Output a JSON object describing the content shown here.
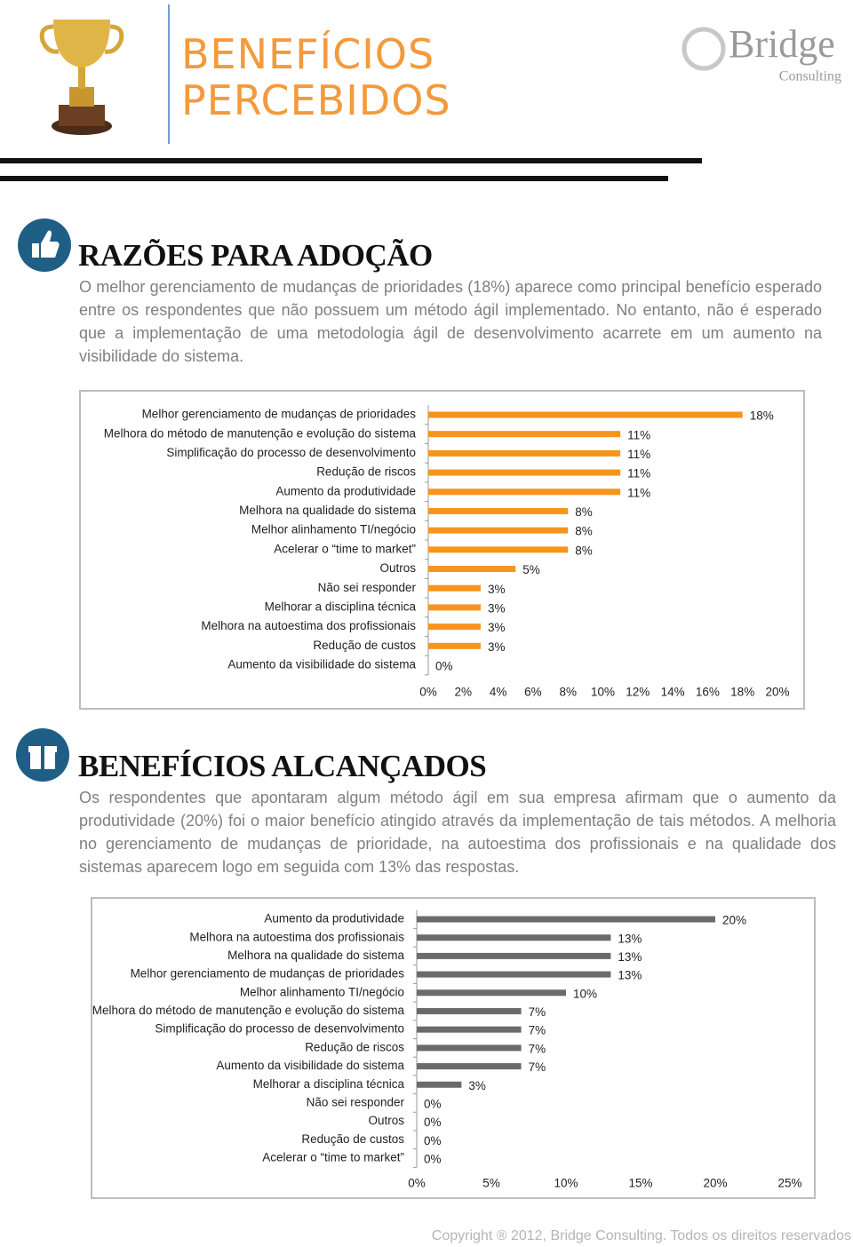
{
  "header": {
    "title_line1": "BENEFÍCIOS",
    "title_line2": "PERCEBIDOS",
    "logo": "Bridge",
    "logo_sub": "Consulting"
  },
  "sections": [
    {
      "title": "RAZÕES PARA ADOÇÃO",
      "text": "O melhor gerenciamento de mudanças de prioridades (18%) aparece como principal benefício esperado entre os respondentes que não possuem um método ágil implementado. No entanto, não é esperado que a implementação de uma metodologia ágil de desenvolvimento acarrete em um aumento na visibilidade do sistema."
    },
    {
      "title": "BENEFÍCIOS ALCANÇADOS",
      "text": "Os respondentes que apontaram algum método ágil em sua empresa afirmam que o aumento da produtividade (20%) foi o maior benefício atingido através da implementação de tais métodos. A melhoria no gerenciamento de mudanças de prioridade, na autoestima dos profissionais e na qualidade dos sistemas aparecem logo em seguida com 13% das respostas."
    }
  ],
  "chart_data": [
    {
      "type": "bar",
      "orientation": "horizontal",
      "color": "#f7941d",
      "categories": [
        "Melhor gerenciamento de mudanças de prioridades",
        "Melhora do método de manutenção e evolução do sistema",
        "Simplificação do processo de desenvolvimento",
        "Redução de riscos",
        "Aumento da produtividade",
        "Melhora na qualidade do sistema",
        "Melhor alinhamento TI/negócio",
        "Acelerar o “time to market”",
        "Outros",
        "Não sei responder",
        "Melhorar a disciplina técnica",
        "Melhora na autoestima dos profissionais",
        "Redução de custos",
        "Aumento da visibilidade do sistema"
      ],
      "values": [
        18,
        11,
        11,
        11,
        11,
        8,
        8,
        8,
        5,
        3,
        3,
        3,
        3,
        0
      ],
      "value_labels": [
        "18%",
        "11%",
        "11%",
        "11%",
        "11%",
        "8%",
        "8%",
        "8%",
        "5%",
        "3%",
        "3%",
        "3%",
        "3%",
        "0%"
      ],
      "xlim": [
        0,
        20
      ],
      "xticks": [
        {
          "value": 0,
          "label": "0%"
        },
        {
          "value": 2,
          "label": "2%"
        },
        {
          "value": 4,
          "label": "4%"
        },
        {
          "value": 6,
          "label": "6%"
        },
        {
          "value": 8,
          "label": "8%"
        },
        {
          "value": 10,
          "label": "10%"
        },
        {
          "value": 12,
          "label": "12%"
        },
        {
          "value": 14,
          "label": "14%"
        },
        {
          "value": 16,
          "label": "16%"
        },
        {
          "value": 18,
          "label": "18%"
        },
        {
          "value": 20,
          "label": "20%"
        }
      ]
    },
    {
      "type": "bar",
      "orientation": "horizontal",
      "color": "#6b6b6b",
      "categories": [
        "Aumento da produtividade",
        "Melhora na autoestima dos profissionais",
        "Melhora na qualidade do sistema",
        "Melhor gerenciamento de mudanças de prioridades",
        "Melhor alinhamento TI/negócio",
        "Melhora do método de manutenção e evolução do sistema",
        "Simplificação do processo de desenvolvimento",
        "Redução de riscos",
        "Aumento da visibilidade do sistema",
        "Melhorar a disciplina técnica",
        "Não sei responder",
        "Outros",
        "Redução de custos",
        "Acelerar o “time to market”"
      ],
      "values": [
        20,
        13,
        13,
        13,
        10,
        7,
        7,
        7,
        7,
        3,
        0,
        0,
        0,
        0
      ],
      "value_labels": [
        "20%",
        "13%",
        "13%",
        "13%",
        "10%",
        "7%",
        "7%",
        "7%",
        "7%",
        "3%",
        "0%",
        "0%",
        "0%",
        "0%"
      ],
      "xlim": [
        0,
        25
      ],
      "xticks": [
        {
          "value": 0,
          "label": "0%"
        },
        {
          "value": 5,
          "label": "5%"
        },
        {
          "value": 10,
          "label": "10%"
        },
        {
          "value": 15,
          "label": "15%"
        },
        {
          "value": 20,
          "label": "20%"
        },
        {
          "value": 25,
          "label": "25%"
        }
      ]
    }
  ],
  "footer": "Copyright ® 2012, Bridge Consulting. Todos os direitos reservados"
}
